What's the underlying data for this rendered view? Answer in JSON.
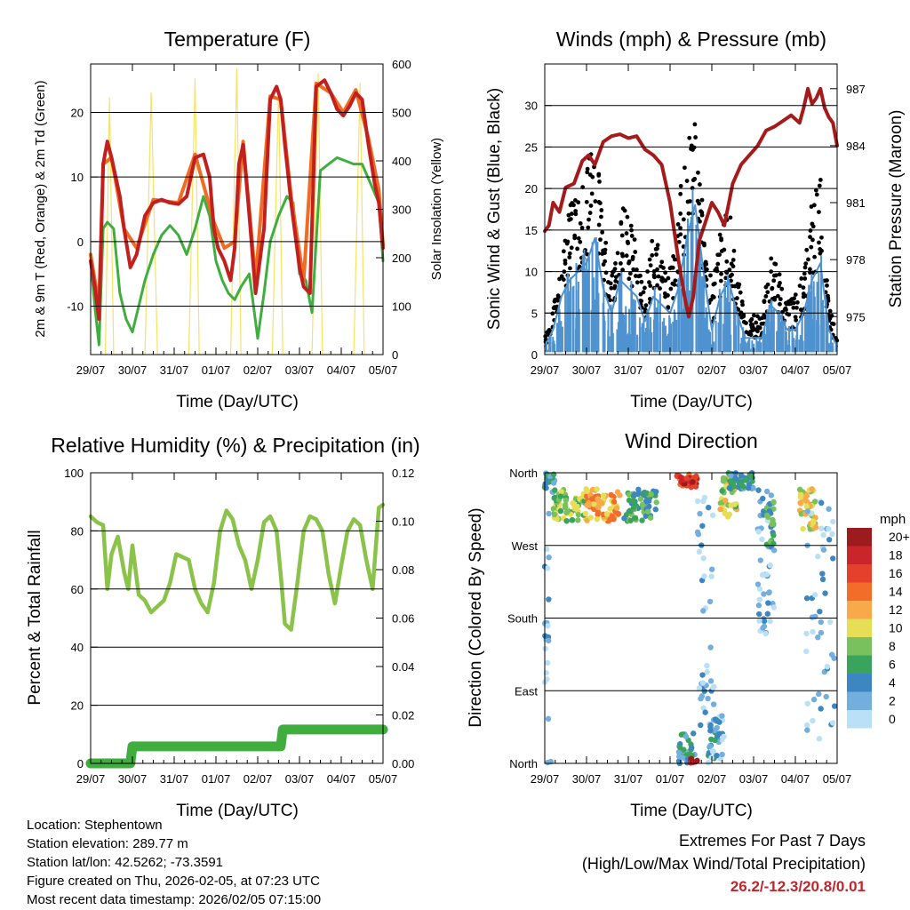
{
  "colors": {
    "red": "#c1201f",
    "orange": "#f06c24",
    "green": "#3fae3f",
    "yellow": "#f7e263",
    "black": "#000000",
    "blue": "#4e92cf",
    "maroon": "#a51b1b",
    "rh": "#8bc34a",
    "precip": "#3fae3f",
    "extremes": "#c0262d"
  },
  "x_ticks": [
    "29/07",
    "30/07",
    "31/07",
    "01/07",
    "02/07",
    "03/07",
    "04/07",
    "05/07"
  ],
  "xlabel": "Time (Day/UTC)",
  "chart_data": [
    {
      "type": "line",
      "id": "temperature",
      "title": "Temperature (F)",
      "ylabel": "2m & 9m T (Red, Orange) & 2m Td (Green)",
      "y2label": "Solar Insolation (Yellow)",
      "ylim": [
        -17.5,
        27.5
      ],
      "yticks": [
        -10,
        0,
        10,
        20
      ],
      "y2lim": [
        0,
        600
      ],
      "y2ticks": [
        0,
        100,
        200,
        300,
        400,
        500,
        600
      ],
      "xlim": [
        0,
        7
      ],
      "series": [
        {
          "name": "2m T",
          "color_key": "red",
          "x": [
            0,
            0.1,
            0.2,
            0.3,
            0.4,
            0.5,
            0.6,
            0.7,
            0.8,
            0.95,
            1.1,
            1.3,
            1.5,
            1.7,
            1.9,
            2.1,
            2.3,
            2.5,
            2.7,
            2.85,
            2.95,
            3.05,
            3.2,
            3.35,
            3.45,
            3.55,
            3.65,
            3.8,
            3.95,
            4.15,
            4.3,
            4.45,
            4.55,
            4.65,
            4.8,
            5.0,
            5.1,
            5.25,
            5.4,
            5.6,
            5.75,
            5.9,
            6.05,
            6.2,
            6.35,
            6.5,
            6.65,
            6.8,
            6.9,
            7.0
          ],
          "y": [
            -3,
            -7,
            -12,
            12,
            15.5,
            13,
            10,
            7,
            2,
            -4,
            -2,
            4,
            6,
            6.5,
            6,
            5.8,
            7,
            13,
            13.5,
            10,
            2,
            -1,
            -3,
            -6,
            -1,
            12,
            15,
            4,
            -8,
            2,
            22,
            24,
            22,
            15,
            6,
            -4,
            -7,
            -8,
            24,
            25,
            23,
            20.5,
            19.5,
            21,
            23,
            22,
            15,
            9,
            6,
            -1
          ]
        },
        {
          "name": "9m T",
          "color_key": "orange",
          "x": [
            0,
            0.2,
            0.3,
            0.5,
            0.8,
            1.1,
            1.5,
            2.1,
            2.5,
            2.95,
            3.2,
            3.45,
            3.65,
            3.95,
            4.3,
            4.55,
            4.8,
            5.1,
            5.4,
            5.75,
            6.05,
            6.35,
            6.65,
            6.9,
            7.0
          ],
          "y": [
            -2,
            -10,
            12,
            13,
            2,
            -1,
            6.5,
            6,
            13.5,
            3,
            -1,
            0,
            15.5,
            -6,
            22.5,
            22,
            7,
            -6,
            24.5,
            23,
            20,
            23.5,
            16,
            8,
            -0.5
          ]
        },
        {
          "name": "2m Td",
          "color_key": "green",
          "x": [
            0,
            0.1,
            0.2,
            0.3,
            0.4,
            0.55,
            0.7,
            0.85,
            1.0,
            1.15,
            1.3,
            1.5,
            1.7,
            1.9,
            2.1,
            2.3,
            2.5,
            2.7,
            2.85,
            3.0,
            3.15,
            3.3,
            3.45,
            3.6,
            3.8,
            4.0,
            4.15,
            4.3,
            4.5,
            4.7,
            4.85,
            5.0,
            5.15,
            5.3,
            5.5,
            5.7,
            5.9,
            6.1,
            6.3,
            6.5,
            6.7,
            6.9,
            7.0
          ],
          "y": [
            -3,
            -10,
            -16,
            2,
            3,
            2,
            -8,
            -12,
            -14,
            -10,
            -6,
            -2,
            1,
            2.5,
            1,
            -2,
            2,
            7,
            4,
            -3,
            -6,
            -8,
            -9,
            -7,
            -5,
            -15,
            -8,
            0,
            4,
            7,
            6,
            -5,
            -6,
            -11,
            11,
            12,
            13,
            12.5,
            12,
            12,
            9,
            6,
            -3
          ]
        },
        {
          "name": "Solar Insolation",
          "color_key": "yellow",
          "axis": "right",
          "x": [
            0.35,
            0.45,
            0.55,
            1.3,
            1.45,
            1.6,
            2.35,
            2.5,
            2.6,
            3.35,
            3.5,
            3.6,
            4.35,
            4.5,
            4.6,
            5.3,
            5.45,
            5.55,
            6.3,
            6.45,
            6.55
          ],
          "y": [
            0,
            530,
            0,
            0,
            540,
            0,
            0,
            570,
            0,
            0,
            590,
            0,
            0,
            550,
            0,
            0,
            580,
            0,
            0,
            560,
            0
          ]
        }
      ]
    },
    {
      "type": "line",
      "id": "winds",
      "title": "Winds (mph) & Pressure (mb)",
      "ylabel": "Sonic Wind & Gust (Blue, Black)",
      "y2label": "Station Pressure (Maroon)",
      "ylim": [
        0,
        35
      ],
      "yticks": [
        0,
        5,
        10,
        15,
        20,
        25,
        30
      ],
      "y2lim": [
        973,
        988.3
      ],
      "y2ticks": [
        975,
        978,
        981,
        984,
        987
      ],
      "xlim": [
        0,
        7
      ],
      "series": [
        {
          "name": "Gust",
          "color_key": "black",
          "x": [
            0,
            0.2,
            0.4,
            0.6,
            0.8,
            1.0,
            1.2,
            1.4,
            1.6,
            1.8,
            2.0,
            2.2,
            2.4,
            2.6,
            2.8,
            3.0,
            3.2,
            3.4,
            3.6,
            3.8,
            4.0,
            4.2,
            4.4,
            4.6,
            4.8,
            5.0,
            5.2,
            5.4,
            5.6,
            5.8,
            6.0,
            6.2,
            6.4,
            6.6,
            6.8,
            7.0
          ],
          "y": [
            2,
            5,
            12,
            17,
            20,
            22,
            26,
            15,
            10,
            18,
            16,
            13,
            8,
            14,
            12,
            10,
            17,
            25,
            28,
            16,
            8,
            14,
            18,
            10,
            4,
            5,
            4,
            12,
            10,
            6,
            7,
            10,
            18,
            22,
            6,
            3
          ]
        },
        {
          "name": "Sonic Wind",
          "color_key": "blue",
          "x": [
            0,
            0.2,
            0.4,
            0.6,
            0.8,
            1.0,
            1.2,
            1.4,
            1.6,
            1.8,
            2.0,
            2.2,
            2.4,
            2.6,
            2.8,
            3.0,
            3.2,
            3.4,
            3.6,
            3.8,
            4.0,
            4.2,
            4.4,
            4.6,
            4.8,
            5.0,
            5.2,
            5.4,
            5.6,
            5.8,
            6.0,
            6.2,
            6.4,
            6.6,
            6.8,
            7.0
          ],
          "y": [
            1,
            3,
            7,
            9,
            10,
            11,
            14,
            8,
            5,
            9,
            8,
            7,
            4,
            7,
            6,
            5,
            8,
            14,
            18,
            10,
            3,
            7,
            9,
            5,
            2,
            2,
            2,
            6,
            5,
            3,
            3,
            5,
            9,
            11,
            3,
            1
          ]
        },
        {
          "name": "Station Pressure",
          "color_key": "maroon",
          "axis": "right",
          "x": [
            0,
            0.1,
            0.2,
            0.35,
            0.5,
            0.7,
            0.9,
            1.05,
            1.2,
            1.4,
            1.6,
            1.8,
            2.0,
            2.2,
            2.4,
            2.6,
            2.8,
            3.0,
            3.2,
            3.35,
            3.45,
            3.55,
            3.7,
            3.85,
            4.0,
            4.15,
            4.3,
            4.5,
            4.7,
            4.9,
            5.1,
            5.3,
            5.5,
            5.7,
            5.9,
            6.1,
            6.2,
            6.3,
            6.4,
            6.5,
            6.6,
            6.7,
            6.8,
            6.9,
            7.0
          ],
          "y": [
            979.5,
            979.8,
            981,
            980.5,
            981.8,
            982,
            983.2,
            983.5,
            983,
            984.2,
            984.5,
            984.6,
            984.4,
            984.5,
            983.8,
            983.5,
            983,
            981,
            978,
            976,
            975,
            976,
            979,
            980,
            981,
            980.5,
            979.8,
            982,
            983,
            983.5,
            984,
            984.8,
            985,
            985.3,
            985.6,
            985.2,
            986,
            987,
            986.2,
            986.5,
            987,
            986,
            985.5,
            985.2,
            984
          ]
        }
      ]
    },
    {
      "type": "line",
      "id": "humidity",
      "title": "Relative Humidity (%) & Precipitation (in)",
      "ylabel": "Percent & Total Rainfall",
      "ylim": [
        0,
        100
      ],
      "yticks": [
        0,
        20,
        40,
        60,
        80,
        100
      ],
      "y2lim": [
        0,
        0.12
      ],
      "y2ticks": [
        "0.00",
        "0.02",
        "0.04",
        "0.06",
        "0.08",
        "0.10",
        "0.12"
      ],
      "xlim": [
        0,
        7
      ],
      "series": [
        {
          "name": "Relative Humidity",
          "color_key": "rh",
          "x": [
            0,
            0.15,
            0.3,
            0.4,
            0.5,
            0.65,
            0.8,
            0.9,
            1.0,
            1.15,
            1.3,
            1.45,
            1.6,
            1.75,
            1.9,
            2.05,
            2.2,
            2.35,
            2.5,
            2.65,
            2.8,
            2.95,
            3.1,
            3.25,
            3.4,
            3.55,
            3.7,
            3.85,
            4.0,
            4.15,
            4.3,
            4.45,
            4.55,
            4.65,
            4.8,
            4.95,
            5.1,
            5.25,
            5.4,
            5.55,
            5.7,
            5.85,
            6.0,
            6.15,
            6.3,
            6.45,
            6.6,
            6.75,
            6.9,
            7.0
          ],
          "y": [
            85,
            83,
            82,
            60,
            72,
            78,
            66,
            60,
            75,
            58,
            56,
            52,
            54,
            56,
            62,
            72,
            71,
            70,
            60,
            55,
            52,
            62,
            80,
            87,
            84,
            75,
            70,
            60,
            70,
            83,
            85,
            80,
            65,
            48,
            46,
            62,
            80,
            85,
            84,
            80,
            65,
            55,
            68,
            80,
            84,
            82,
            70,
            60,
            88,
            89
          ]
        },
        {
          "name": "Total Precipitation",
          "color_key": "precip",
          "axis": "right",
          "x": [
            0,
            0.95,
            1.0,
            4.55,
            4.6,
            7.0
          ],
          "y": [
            0,
            0,
            0.007,
            0.007,
            0.014,
            0.014
          ]
        }
      ]
    },
    {
      "type": "scatter",
      "id": "direction",
      "title": "Wind Direction",
      "ylabel": "Direction (Colored By Speed)",
      "ycats": [
        "North",
        "East",
        "South",
        "West",
        "North"
      ],
      "ylim": [
        0,
        360
      ],
      "xlim": [
        0,
        7
      ],
      "legend_title": "mph",
      "legend_labels": [
        "20+",
        "18",
        "16",
        "14",
        "12",
        "10",
        "8",
        "6",
        "4",
        "2",
        "0"
      ],
      "legend_colors": [
        "#9b1b1e",
        "#c9252b",
        "#e4402c",
        "#f36d2a",
        "#f8a94a",
        "#e6de57",
        "#78c15d",
        "#3aa35c",
        "#3c86c1",
        "#72aede",
        "#b9e0f4"
      ],
      "clusters": [
        {
          "x": 0.1,
          "y": 350,
          "spread_x": 0.15,
          "spread_y": 15,
          "n": 20,
          "speed": 4
        },
        {
          "x": 0.6,
          "y": 320,
          "spread_x": 0.4,
          "spread_y": 20,
          "n": 70,
          "speed": 8
        },
        {
          "x": 1.4,
          "y": 320,
          "spread_x": 0.4,
          "spread_y": 20,
          "n": 70,
          "speed": 12
        },
        {
          "x": 2.3,
          "y": 320,
          "spread_x": 0.4,
          "spread_y": 20,
          "n": 60,
          "speed": 6
        },
        {
          "x": 3.4,
          "y": 350,
          "spread_x": 0.25,
          "spread_y": 8,
          "n": 40,
          "speed": 17
        },
        {
          "x": 3.4,
          "y": 20,
          "spread_x": 0.2,
          "spread_y": 20,
          "n": 30,
          "speed": 4
        },
        {
          "x": 3.55,
          "y": 3,
          "spread_x": 0.1,
          "spread_y": 3,
          "n": 10,
          "speed": 20
        },
        {
          "x": 4.4,
          "y": 330,
          "spread_x": 0.2,
          "spread_y": 25,
          "n": 40,
          "speed": 9
        },
        {
          "x": 4.1,
          "y": 30,
          "spread_x": 0.2,
          "spread_y": 30,
          "n": 40,
          "speed": 3
        },
        {
          "x": 4.7,
          "y": 350,
          "spread_x": 0.3,
          "spread_y": 10,
          "n": 40,
          "speed": 4
        },
        {
          "x": 5.3,
          "y": 250,
          "spread_x": 0.2,
          "spread_y": 90,
          "n": 50,
          "speed": 2
        },
        {
          "x": 5.4,
          "y": 300,
          "spread_x": 0.1,
          "spread_y": 30,
          "n": 20,
          "speed": 6
        },
        {
          "x": 6.3,
          "y": 315,
          "spread_x": 0.2,
          "spread_y": 25,
          "n": 50,
          "speed": 10
        },
        {
          "x": 6.6,
          "y": 180,
          "spread_x": 0.35,
          "spread_y": 150,
          "n": 50,
          "speed": 1
        },
        {
          "x": 3.85,
          "y": 180,
          "spread_x": 0.2,
          "spread_y": 150,
          "n": 40,
          "speed": 2
        },
        {
          "x": 0.05,
          "y": 180,
          "spread_x": 0.05,
          "spread_y": 130,
          "n": 20,
          "speed": 1
        }
      ]
    }
  ],
  "info": {
    "location": "Location: Stephentown",
    "elevation": "Station elevation: 289.77 m",
    "latlon": "Station lat/lon: 42.5262; -73.3591",
    "created": "Figure created on Thu, 2026-02-05, at 07:23 UTC",
    "recent": "Most recent data timestamp: 2026/02/05 07:15:00"
  },
  "extremes": {
    "line1": "Extremes For Past 7 Days",
    "line2": "(High/Low/Max Wind/Total Precipitation)",
    "value": "26.2/-12.3/20.8/0.01"
  }
}
